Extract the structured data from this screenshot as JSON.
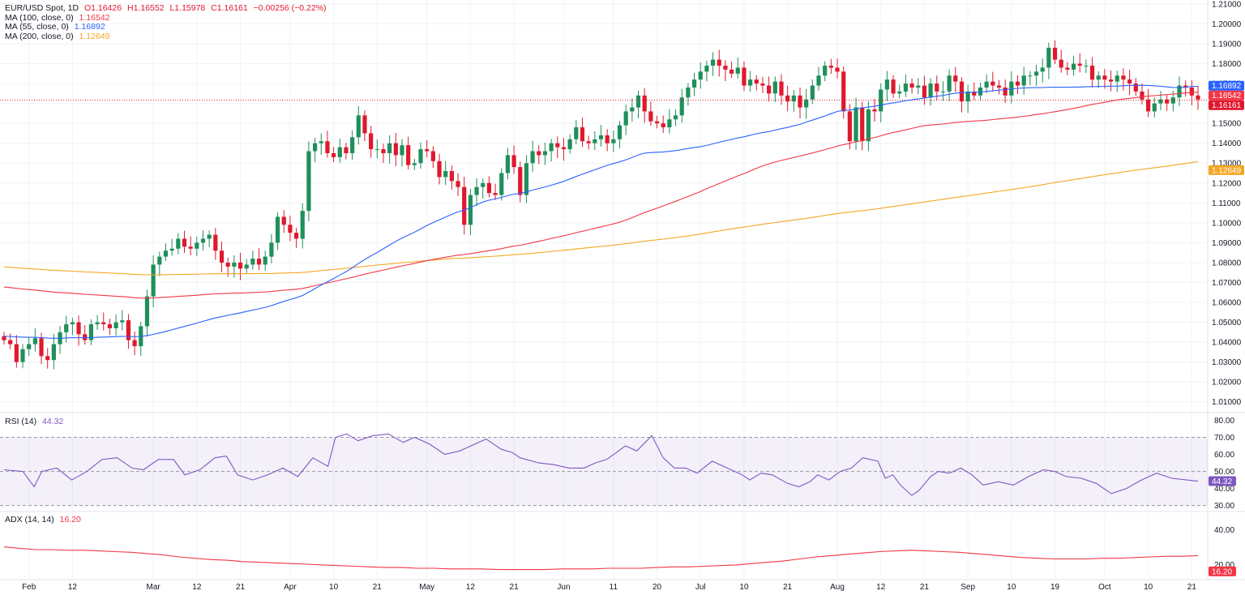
{
  "header": {
    "symbol": "EUR/USD Spot, 1D",
    "open": "O1.16426",
    "high": "H1.16552",
    "low": "L1.15978",
    "close": "C1.16161",
    "change": "−0.00256 (−0.22%)"
  },
  "ma_legend": [
    {
      "label": "MA (100, close, 0)",
      "value": "1.16542",
      "color": "#f23645"
    },
    {
      "label": "MA (55, close, 0)",
      "value": "1.16892",
      "color": "#2962ff"
    },
    {
      "label": "MA (200, close, 0)",
      "value": "1.12649",
      "color": "#f5a623"
    }
  ],
  "rsi_legend": {
    "label": "RSI (14)",
    "value": "44.32",
    "color": "#7e57c2"
  },
  "adx_legend": {
    "label": "ADX (14, 14)",
    "value": "16.20",
    "color": "#f23645"
  },
  "colors": {
    "up": "#1f8f5b",
    "down": "#e0182d",
    "ma100": "#f23645",
    "ma55": "#2962ff",
    "ma200": "#f5a623",
    "rsi": "#7e57c2",
    "adx": "#f23645",
    "grid": "#f0f3fa",
    "text": "#131722"
  },
  "chart_data": [
    {
      "type": "candlestick",
      "title": "EUR/USD Spot, 1D",
      "y_ticks": [
        "1.21000",
        "1.20000",
        "1.19000",
        "1.18000",
        "1.17000",
        "1.16000",
        "1.15000",
        "1.14000",
        "1.13000",
        "1.12000",
        "1.11000",
        "1.10000",
        "1.09000",
        "1.08000",
        "1.07000",
        "1.06000",
        "1.05000",
        "1.04000",
        "1.03000",
        "1.02000",
        "1.01000"
      ],
      "ylim": [
        1.005,
        1.212
      ],
      "x_labels": [
        {
          "label": "Feb",
          "index": 4
        },
        {
          "label": "12",
          "index": 11
        },
        {
          "label": "Mar",
          "index": 24
        },
        {
          "label": "12",
          "index": 31
        },
        {
          "label": "21",
          "index": 38
        },
        {
          "label": "Apr",
          "index": 46
        },
        {
          "label": "10",
          "index": 53
        },
        {
          "label": "21",
          "index": 60
        },
        {
          "label": "May",
          "index": 68
        },
        {
          "label": "12",
          "index": 75
        },
        {
          "label": "21",
          "index": 82
        },
        {
          "label": "Jun",
          "index": 90
        },
        {
          "label": "11",
          "index": 98
        },
        {
          "label": "20",
          "index": 105
        },
        {
          "label": "Jul",
          "index": 112
        },
        {
          "label": "10",
          "index": 119
        },
        {
          "label": "21",
          "index": 126
        },
        {
          "label": "Aug",
          "index": 134
        },
        {
          "label": "12",
          "index": 141
        },
        {
          "label": "21",
          "index": 148
        },
        {
          "label": "Sep",
          "index": 155
        },
        {
          "label": "10",
          "index": 162
        },
        {
          "label": "19",
          "index": 169
        },
        {
          "label": "Oct",
          "index": 177
        },
        {
          "label": "10",
          "index": 184
        },
        {
          "label": "21",
          "index": 191
        }
      ],
      "price_badges": [
        {
          "value": "1.16892",
          "price": 1.16892,
          "color": "#2962ff"
        },
        {
          "value": "1.16542",
          "price": 1.16542,
          "color": "#f23645"
        },
        {
          "value": "1.16161",
          "price": 1.16161,
          "color": "#e0182d"
        },
        {
          "value": "1.12649",
          "price": 1.12649,
          "color": "#f5a623"
        }
      ],
      "last_price": 1.16161,
      "closes": [
        1.041,
        1.039,
        1.03,
        1.0365,
        1.039,
        1.042,
        1.033,
        1.031,
        1.039,
        1.045,
        1.049,
        1.05,
        1.044,
        1.041,
        1.049,
        1.05,
        1.049,
        1.047,
        1.05,
        1.051,
        1.041,
        1.038,
        1.048,
        1.063,
        1.079,
        1.083,
        1.086,
        1.087,
        1.092,
        1.088,
        1.087,
        1.09,
        1.092,
        1.094,
        1.086,
        1.08,
        1.078,
        1.08,
        1.077,
        1.079,
        1.082,
        1.079,
        1.083,
        1.09,
        1.103,
        1.099,
        1.095,
        1.092,
        1.106,
        1.136,
        1.14,
        1.141,
        1.135,
        1.133,
        1.138,
        1.135,
        1.143,
        1.154,
        1.145,
        1.137,
        1.137,
        1.135,
        1.14,
        1.134,
        1.139,
        1.129,
        1.13,
        1.137,
        1.136,
        1.131,
        1.123,
        1.126,
        1.121,
        1.118,
        1.099,
        1.114,
        1.118,
        1.12,
        1.115,
        1.114,
        1.125,
        1.134,
        1.128,
        1.114,
        1.13,
        1.136,
        1.134,
        1.136,
        1.14,
        1.138,
        1.137,
        1.142,
        1.148,
        1.141,
        1.14,
        1.142,
        1.144,
        1.14,
        1.142,
        1.149,
        1.156,
        1.158,
        1.164,
        1.156,
        1.151,
        1.15,
        1.148,
        1.152,
        1.154,
        1.163,
        1.168,
        1.172,
        1.176,
        1.179,
        1.182,
        1.179,
        1.177,
        1.175,
        1.178,
        1.169,
        1.172,
        1.17,
        1.169,
        1.165,
        1.171,
        1.164,
        1.161,
        1.164,
        1.158,
        1.162,
        1.169,
        1.174,
        1.179,
        1.178,
        1.176,
        1.156,
        1.141,
        1.158,
        1.141,
        1.157,
        1.156,
        1.167,
        1.172,
        1.165,
        1.166,
        1.17,
        1.168,
        1.169,
        1.163,
        1.17,
        1.166,
        1.166,
        1.174,
        1.171,
        1.161,
        1.166,
        1.164,
        1.168,
        1.171,
        1.169,
        1.168,
        1.164,
        1.171,
        1.169,
        1.174,
        1.174,
        1.176,
        1.178,
        1.188,
        1.182,
        1.178,
        1.177,
        1.18,
        1.179,
        1.179,
        1.172,
        1.174,
        1.172,
        1.171,
        1.174,
        1.172,
        1.17,
        1.166,
        1.162,
        1.156,
        1.16,
        1.162,
        1.16,
        1.163,
        1.169,
        1.168,
        1.164,
        1.162
      ],
      "rsi": {
        "yticks": [
          "80.00",
          "70.00",
          "60.00",
          "50.00",
          "40.00",
          "30.00"
        ],
        "ylim": [
          27,
          84
        ],
        "upper_band": 70,
        "lower_band": 30,
        "mid_line": 50,
        "last": "44.32",
        "points": [
          [
            0,
            51
          ],
          [
            5,
            50
          ],
          [
            8,
            41
          ],
          [
            10,
            50
          ],
          [
            14,
            52
          ],
          [
            18,
            45
          ],
          [
            22,
            50
          ],
          [
            26,
            57
          ],
          [
            30,
            58
          ],
          [
            34,
            52
          ],
          [
            37,
            51
          ],
          [
            41,
            57
          ],
          [
            45,
            57
          ],
          [
            48,
            48
          ],
          [
            52,
            51
          ],
          [
            56,
            58
          ],
          [
            59,
            59
          ],
          [
            62,
            48
          ],
          [
            66,
            45
          ],
          [
            70,
            48
          ],
          [
            74,
            52
          ],
          [
            78,
            47
          ],
          [
            82,
            58
          ],
          [
            86,
            53
          ],
          [
            88,
            70
          ],
          [
            91,
            72
          ],
          [
            94,
            68
          ],
          [
            98,
            71
          ],
          [
            102,
            72
          ],
          [
            106,
            67
          ],
          [
            109,
            70
          ],
          [
            113,
            66
          ],
          [
            117,
            60
          ],
          [
            121,
            62
          ],
          [
            125,
            66
          ],
          [
            128,
            69
          ],
          [
            132,
            63
          ],
          [
            135,
            61
          ],
          [
            137,
            58
          ],
          [
            142,
            55
          ],
          [
            146,
            54
          ],
          [
            150,
            52
          ],
          [
            154,
            52
          ],
          [
            157,
            55
          ],
          [
            160,
            57
          ],
          [
            165,
            65
          ],
          [
            168,
            62
          ],
          [
            172,
            71
          ],
          [
            175,
            58
          ],
          [
            178,
            52
          ],
          [
            181,
            52
          ],
          [
            184,
            49
          ],
          [
            188,
            56
          ],
          [
            192,
            52
          ],
          [
            196,
            48
          ],
          [
            198,
            45
          ],
          [
            201,
            49
          ],
          [
            204,
            48
          ],
          [
            208,
            43
          ],
          [
            211,
            41
          ],
          [
            214,
            44
          ],
          [
            216,
            48
          ],
          [
            219,
            45
          ],
          [
            222,
            50
          ],
          [
            225,
            52
          ],
          [
            228,
            58
          ],
          [
            232,
            56
          ],
          [
            234,
            46
          ],
          [
            236,
            48
          ],
          [
            238,
            42
          ],
          [
            241,
            36
          ],
          [
            243,
            39
          ],
          [
            246,
            47
          ],
          [
            248,
            50
          ],
          [
            251,
            49
          ],
          [
            254,
            52
          ],
          [
            257,
            48
          ],
          [
            260,
            42
          ],
          [
            264,
            44
          ],
          [
            268,
            42
          ],
          [
            272,
            47
          ],
          [
            276,
            51
          ],
          [
            279,
            50
          ],
          [
            282,
            47
          ],
          [
            286,
            46
          ],
          [
            290,
            43
          ],
          [
            294,
            37
          ],
          [
            298,
            40
          ],
          [
            302,
            45
          ],
          [
            306,
            49
          ],
          [
            310,
            46
          ],
          [
            314,
            45
          ],
          [
            317,
            44.3
          ]
        ]
      },
      "adx": {
        "yticks": [
          "40.00",
          "20.00"
        ],
        "ylim": [
          12,
          50
        ],
        "last": "16.20",
        "points": [
          [
            0,
            0.4
          ],
          [
            1,
            0.38
          ],
          [
            2,
            0.36
          ],
          [
            3,
            0.36
          ],
          [
            4,
            0.35
          ],
          [
            5,
            0.35
          ],
          [
            6,
            0.34
          ],
          [
            7,
            0.33
          ],
          [
            8,
            0.32
          ],
          [
            9,
            0.3
          ],
          [
            10,
            0.28
          ],
          [
            11,
            0.25
          ],
          [
            12,
            0.23
          ],
          [
            13,
            0.21
          ],
          [
            14,
            0.2
          ],
          [
            15,
            0.18
          ],
          [
            16,
            0.17
          ],
          [
            17,
            0.16
          ],
          [
            18,
            0.15
          ],
          [
            19,
            0.14
          ],
          [
            20,
            0.13
          ],
          [
            21,
            0.12
          ],
          [
            22,
            0.11
          ],
          [
            23,
            0.1
          ],
          [
            24,
            0.09
          ],
          [
            25,
            0.09
          ],
          [
            26,
            0.08
          ],
          [
            27,
            0.08
          ],
          [
            28,
            0.07
          ],
          [
            29,
            0.07
          ],
          [
            30,
            0.07
          ],
          [
            31,
            0.06
          ],
          [
            32,
            0.06
          ],
          [
            33,
            0.06
          ],
          [
            34,
            0.06
          ],
          [
            35,
            0.07
          ],
          [
            36,
            0.07
          ],
          [
            37,
            0.07
          ],
          [
            38,
            0.08
          ],
          [
            39,
            0.08
          ],
          [
            40,
            0.08
          ],
          [
            41,
            0.09
          ],
          [
            42,
            0.1
          ],
          [
            43,
            0.1
          ],
          [
            44,
            0.11
          ],
          [
            45,
            0.12
          ],
          [
            46,
            0.13
          ],
          [
            47,
            0.15
          ],
          [
            48,
            0.17
          ],
          [
            49,
            0.19
          ],
          [
            50,
            0.22
          ],
          [
            51,
            0.25
          ],
          [
            52,
            0.27
          ],
          [
            53,
            0.29
          ],
          [
            54,
            0.31
          ],
          [
            55,
            0.33
          ],
          [
            56,
            0.34
          ],
          [
            57,
            0.35
          ],
          [
            58,
            0.34
          ],
          [
            59,
            0.33
          ],
          [
            60,
            0.32
          ],
          [
            61,
            0.3
          ],
          [
            62,
            0.28
          ],
          [
            63,
            0.26
          ],
          [
            64,
            0.24
          ],
          [
            65,
            0.23
          ],
          [
            66,
            0.22
          ],
          [
            67,
            0.22
          ],
          [
            68,
            0.22
          ],
          [
            69,
            0.23
          ],
          [
            70,
            0.23
          ],
          [
            71,
            0.24
          ],
          [
            72,
            0.25
          ],
          [
            73,
            0.26
          ],
          [
            74,
            0.26
          ],
          [
            75,
            0.27
          ]
        ]
      }
    }
  ]
}
